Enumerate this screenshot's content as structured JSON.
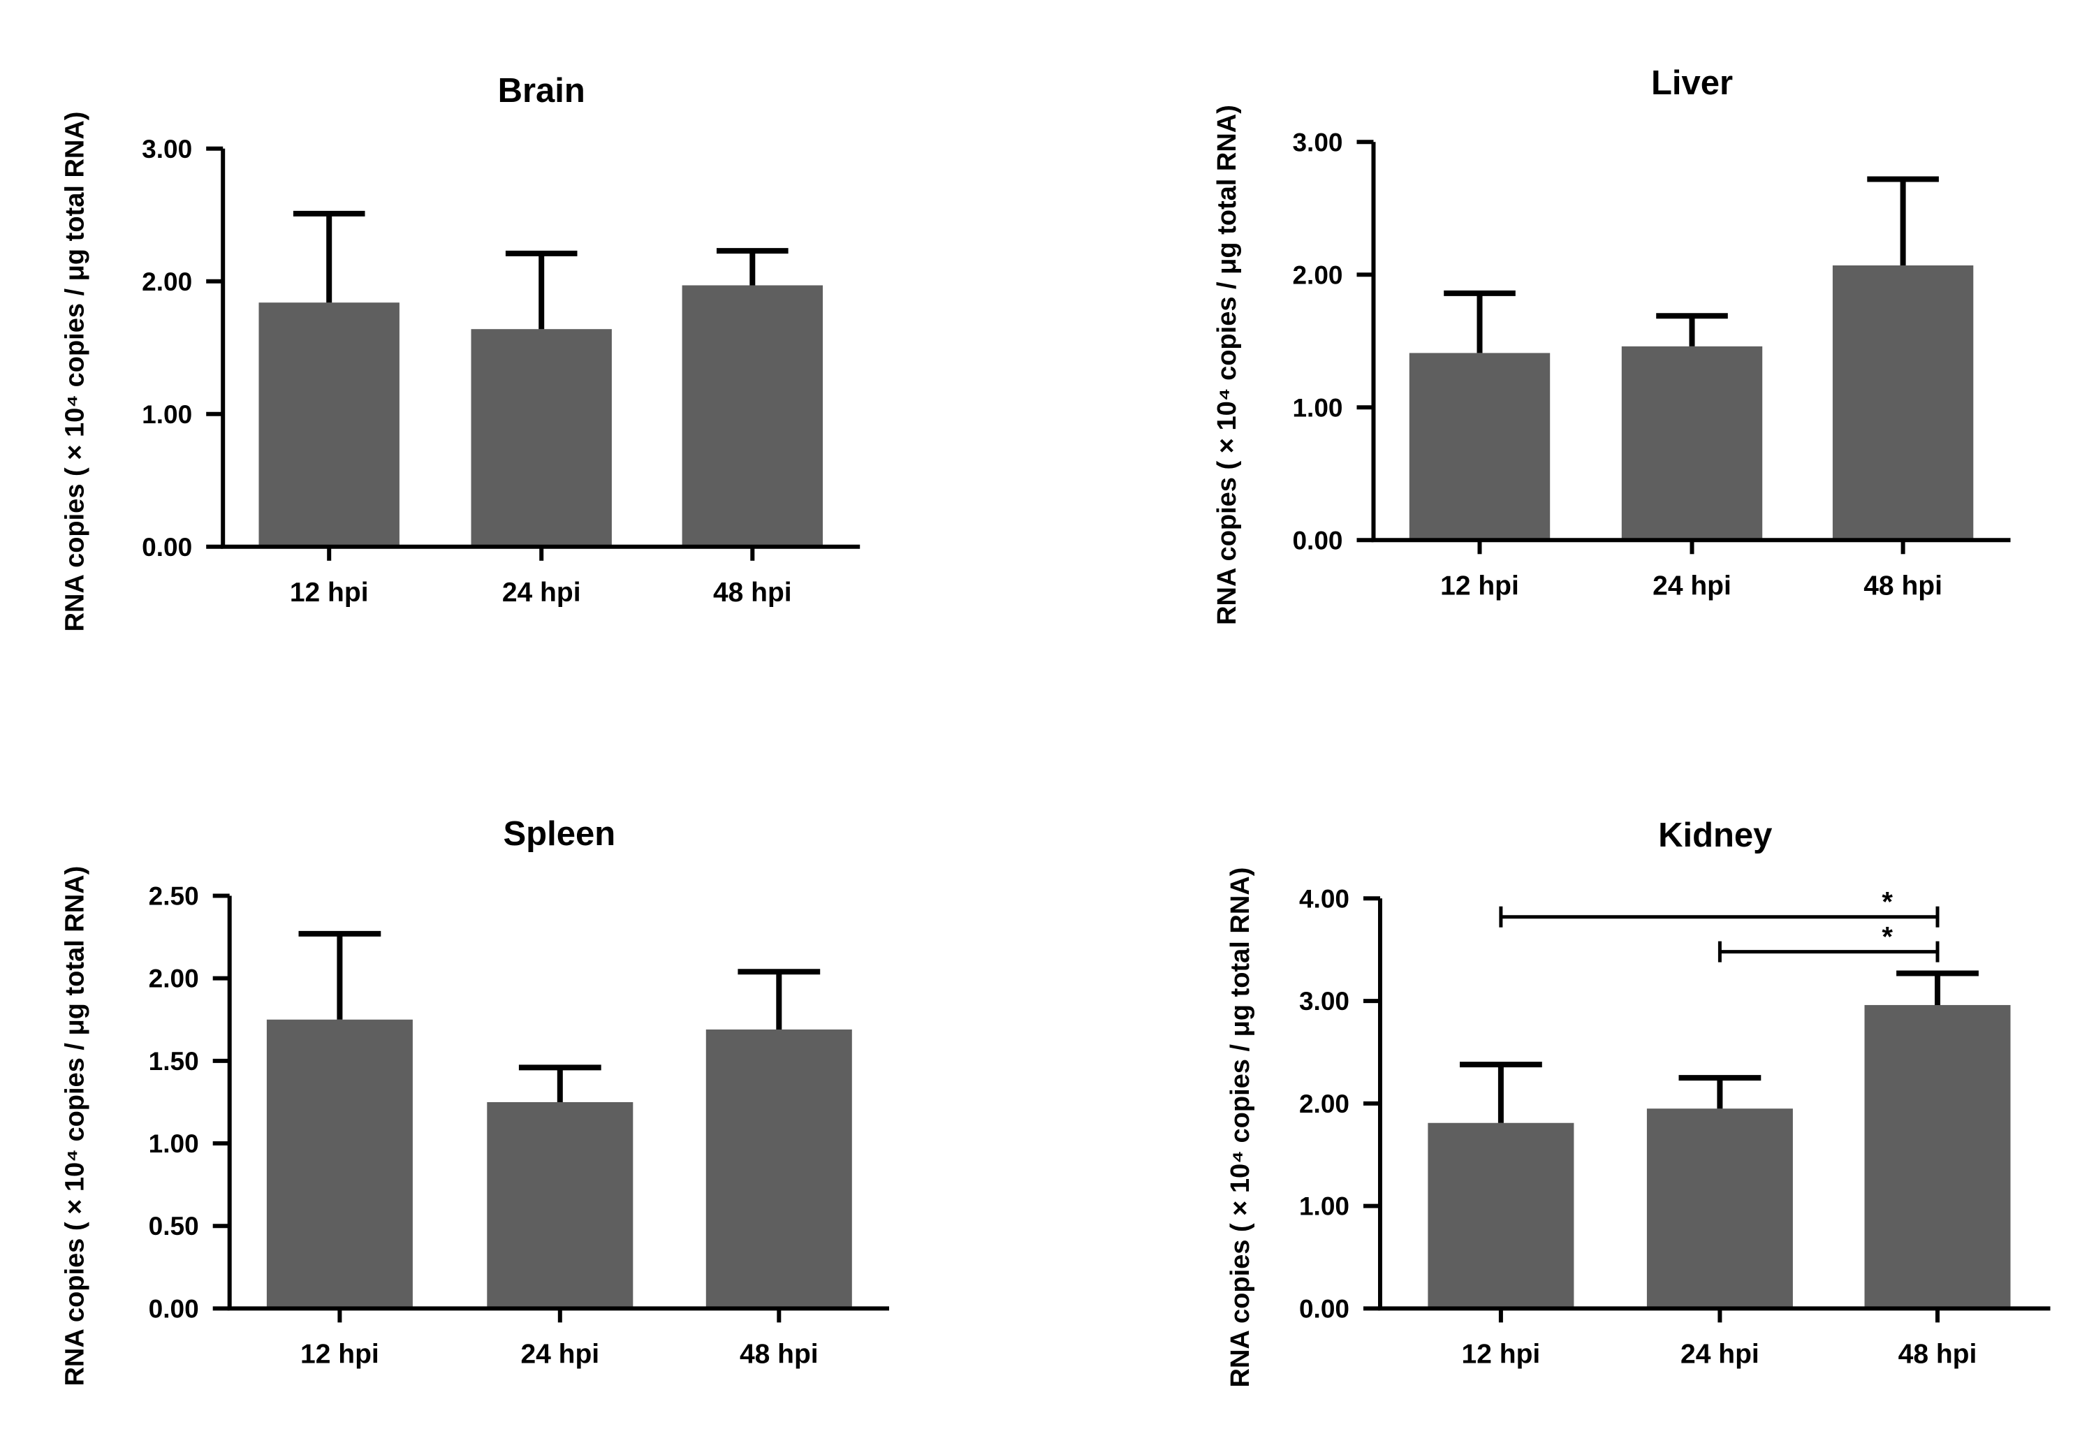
{
  "figure": {
    "bar_color": "#5f5f5f",
    "axis_color": "#000000",
    "panel_order": [
      "brain",
      "liver",
      "spleen",
      "kidney"
    ]
  },
  "chart_data": [
    {
      "id": "brain",
      "type": "bar",
      "title": "Brain",
      "ylabel": "RNA copies ( × 10⁴ copies / μg total RNA)",
      "xlabel": "",
      "categories": [
        "12 hpi",
        "24 hpi",
        "48 hpi"
      ],
      "values": [
        1.84,
        1.64,
        1.97
      ],
      "errors": [
        0.67,
        0.57,
        0.26
      ],
      "ylim": [
        0,
        3
      ],
      "yticks": [
        0,
        1,
        2,
        3
      ],
      "ytick_labels": [
        "0.00",
        "1.00",
        "2.00",
        "3.00"
      ],
      "significance": []
    },
    {
      "id": "liver",
      "type": "bar",
      "title": "Liver",
      "ylabel": "RNA copies ( × 10⁴ copies / μg total RNA)",
      "xlabel": "",
      "categories": [
        "12 hpi",
        "24 hpi",
        "48 hpi"
      ],
      "values": [
        1.41,
        1.46,
        2.07
      ],
      "errors": [
        0.45,
        0.23,
        0.65
      ],
      "ylim": [
        0,
        3
      ],
      "yticks": [
        0,
        1,
        2,
        3
      ],
      "ytick_labels": [
        "0.00",
        "1.00",
        "2.00",
        "3.00"
      ],
      "significance": []
    },
    {
      "id": "spleen",
      "type": "bar",
      "title": "Spleen",
      "ylabel": "RNA copies ( × 10⁴ copies / μg total RNA)",
      "xlabel": "",
      "categories": [
        "12 hpi",
        "24 hpi",
        "48 hpi"
      ],
      "values": [
        1.75,
        1.25,
        1.69
      ],
      "errors": [
        0.52,
        0.21,
        0.35
      ],
      "ylim": [
        0,
        2.5
      ],
      "yticks": [
        0,
        0.5,
        1,
        1.5,
        2,
        2.5
      ],
      "ytick_labels": [
        "0.00",
        "0.50",
        "1.00",
        "1.50",
        "2.00",
        "2.50"
      ],
      "significance": []
    },
    {
      "id": "kidney",
      "type": "bar",
      "title": "Kidney",
      "ylabel": "RNA copies ( × 10⁴ copies / μg total RNA)",
      "xlabel": "",
      "categories": [
        "12 hpi",
        "24 hpi",
        "48 hpi"
      ],
      "values": [
        1.81,
        1.95,
        2.96
      ],
      "errors": [
        0.57,
        0.3,
        0.31
      ],
      "ylim": [
        0,
        4
      ],
      "yticks": [
        0,
        1,
        2,
        3,
        4
      ],
      "ytick_labels": [
        "0.00",
        "1.00",
        "2.00",
        "3.00",
        "4.00"
      ],
      "significance": [
        {
          "from": 0,
          "to": 2,
          "y": 3.82,
          "label": "*"
        },
        {
          "from": 1,
          "to": 2,
          "y": 3.48,
          "label": "*"
        }
      ]
    }
  ]
}
